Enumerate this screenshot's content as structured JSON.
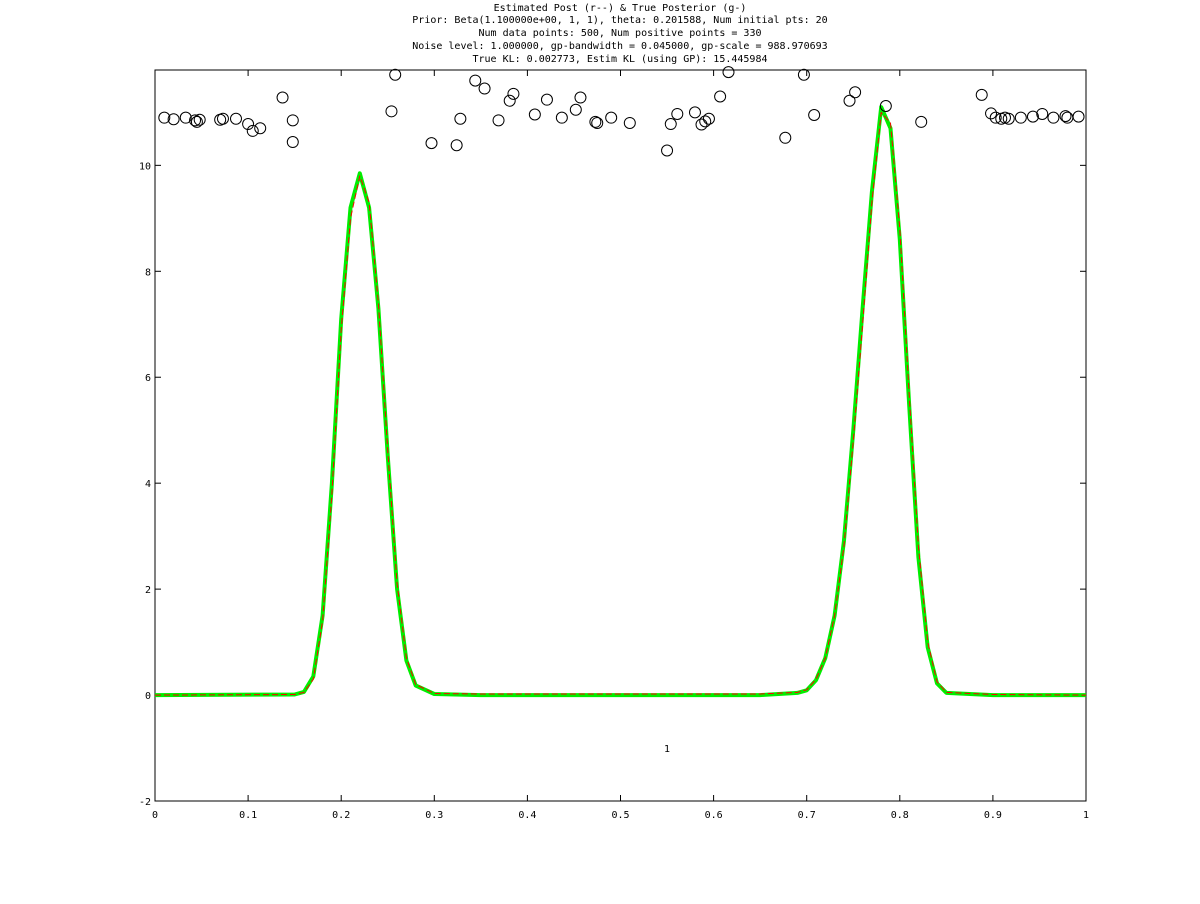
{
  "chart_data": {
    "type": "line",
    "title_lines": [
      "Estimated Post (r--) & True Posterior (g-)",
      "Prior: Beta(1.100000e+00, 1, 1), theta: 0.201588, Num initial pts: 20",
      "Num data points: 500, Num positive points = 330",
      "Noise level: 1.000000, gp-bandwidth  = 0.045000, gp-scale = 988.970693",
      "True KL: 0.002773, Estim KL (using GP): 15.445984"
    ],
    "annotation": "1",
    "annotation_pos": [
      0.55,
      -1.0
    ],
    "xlim": [
      0,
      1
    ],
    "ylim": [
      -2,
      11.8
    ],
    "x_ticks": [
      0,
      0.1,
      0.2,
      0.3,
      0.4,
      0.5,
      0.6,
      0.7,
      0.8,
      0.9,
      1
    ],
    "x_tick_labels": [
      "0",
      "0.1",
      "0.2",
      "0.3",
      "0.4",
      "0.5",
      "0.6",
      "0.7",
      "0.8",
      "0.9",
      "1"
    ],
    "y_ticks": [
      -2,
      0,
      2,
      4,
      6,
      8,
      10
    ],
    "y_tick_labels": [
      "-2",
      "0",
      "2",
      "4",
      "6",
      "8",
      "10"
    ],
    "grid": false,
    "series": [
      {
        "style": "r--",
        "color": "#ff0000",
        "x": [
          0,
          0.15,
          0.16,
          0.17,
          0.18,
          0.19,
          0.2,
          0.21,
          0.22,
          0.23,
          0.24,
          0.25,
          0.26,
          0.27,
          0.28,
          0.3,
          0.35,
          0.5,
          0.65,
          0.69,
          0.7,
          0.71,
          0.72,
          0.73,
          0.74,
          0.75,
          0.76,
          0.77,
          0.78,
          0.79,
          0.8,
          0.81,
          0.82,
          0.83,
          0.84,
          0.85,
          0.9,
          1
        ],
        "y": [
          0,
          0.01,
          0.05,
          0.3,
          1.4,
          3.8,
          6.9,
          9.0,
          9.8,
          9.3,
          7.4,
          4.6,
          2.1,
          0.7,
          0.2,
          0.03,
          0.02,
          0.02,
          0.02,
          0.05,
          0.1,
          0.3,
          0.7,
          1.5,
          2.8,
          4.8,
          7.0,
          9.3,
          11.0,
          10.8,
          8.8,
          5.7,
          2.8,
          1.0,
          0.25,
          0.05,
          0.01,
          0
        ]
      },
      {
        "style": "g-",
        "color": "#00ee00",
        "x": [
          0,
          0.15,
          0.16,
          0.17,
          0.18,
          0.19,
          0.2,
          0.21,
          0.22,
          0.23,
          0.24,
          0.25,
          0.26,
          0.27,
          0.28,
          0.3,
          0.35,
          0.5,
          0.65,
          0.69,
          0.7,
          0.71,
          0.72,
          0.73,
          0.74,
          0.75,
          0.76,
          0.77,
          0.78,
          0.79,
          0.8,
          0.81,
          0.82,
          0.83,
          0.84,
          0.85,
          0.9,
          1
        ],
        "y": [
          0,
          0.01,
          0.06,
          0.35,
          1.5,
          4.0,
          7.1,
          9.2,
          9.85,
          9.2,
          7.3,
          4.5,
          2.0,
          0.65,
          0.18,
          0.02,
          0.0,
          0.0,
          0.0,
          0.04,
          0.09,
          0.28,
          0.7,
          1.5,
          2.9,
          5.0,
          7.3,
          9.5,
          11.1,
          10.7,
          8.6,
          5.5,
          2.6,
          0.9,
          0.22,
          0.04,
          0.0,
          0
        ]
      }
    ],
    "scatter_points": {
      "marker": "open-circle",
      "color": "#000000",
      "x": [
        0.01,
        0.02,
        0.033,
        0.043,
        0.045,
        0.048,
        0.07,
        0.073,
        0.087,
        0.1,
        0.105,
        0.113,
        0.137,
        0.148,
        0.148,
        0.254,
        0.258,
        0.297,
        0.324,
        0.328,
        0.344,
        0.354,
        0.369,
        0.381,
        0.385,
        0.408,
        0.421,
        0.437,
        0.452,
        0.457,
        0.473,
        0.475,
        0.49,
        0.51,
        0.55,
        0.554,
        0.561,
        0.58,
        0.587,
        0.591,
        0.595,
        0.607,
        0.616,
        0.677,
        0.697,
        0.708,
        0.746,
        0.752,
        0.785,
        0.823,
        0.888,
        0.898,
        0.903,
        0.909,
        0.913,
        0.917,
        0.93,
        0.943,
        0.953,
        0.965,
        0.978,
        0.98,
        0.992
      ],
      "y": [
        10.9,
        10.87,
        10.9,
        10.85,
        10.82,
        10.86,
        10.86,
        10.88,
        10.88,
        10.78,
        10.65,
        10.7,
        11.28,
        10.85,
        10.44,
        11.02,
        11.71,
        10.42,
        10.38,
        10.88,
        11.6,
        11.45,
        10.85,
        11.22,
        11.35,
        10.96,
        11.24,
        10.9,
        11.05,
        11.28,
        10.82,
        10.8,
        10.9,
        10.8,
        10.28,
        10.78,
        10.97,
        11.0,
        10.77,
        10.83,
        10.88,
        11.3,
        11.76,
        10.52,
        11.71,
        10.95,
        11.22,
        11.38,
        11.12,
        10.82,
        11.33,
        10.98,
        10.9,
        10.88,
        10.9,
        10.88,
        10.9,
        10.92,
        10.97,
        10.9,
        10.93,
        10.9,
        10.92
      ]
    }
  }
}
